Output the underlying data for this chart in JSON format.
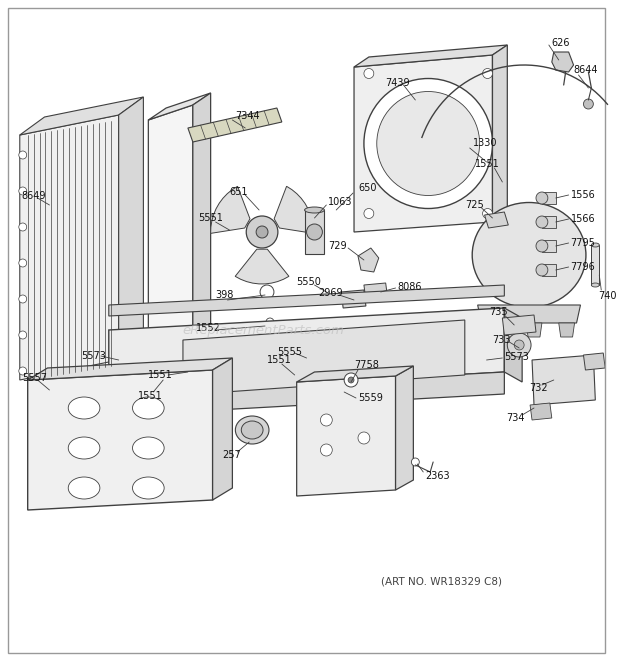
{
  "bg_color": "#ffffff",
  "line_color": "#404040",
  "art_no": "(ART NO. WR18329 C8)",
  "watermark": "eReplacementParts.com",
  "label_fontsize": 7.0,
  "art_no_fontsize": 7.5,
  "watermark_fontsize": 9.5
}
